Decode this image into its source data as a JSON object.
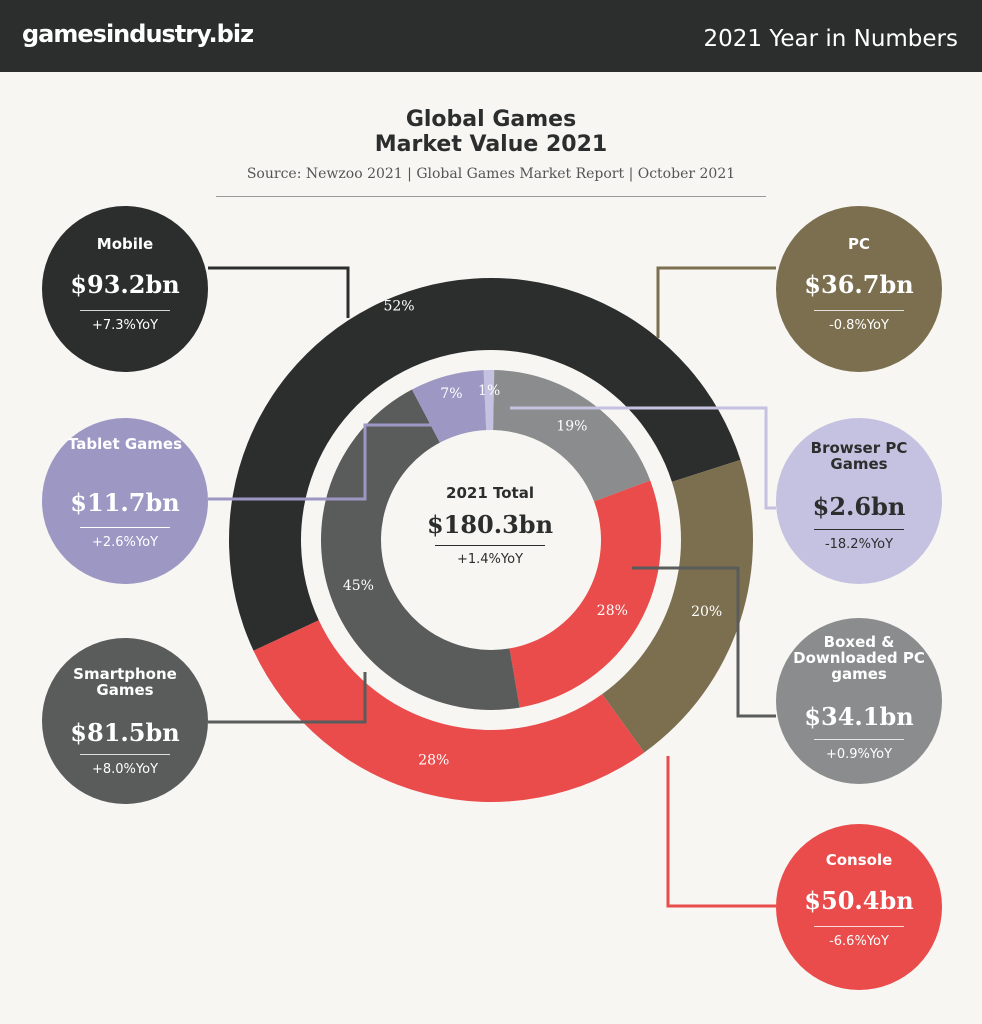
{
  "header": {
    "brand": "gamesindustry.biz",
    "section": "2021 Year in Numbers"
  },
  "title_line1": "Global Games",
  "title_line2": "Market Value 2021",
  "source": "Source: Newzoo 2021 | Global Games Market Report | October 2021",
  "total": {
    "label": "2021 Total",
    "value": "$180.3bn",
    "yoy": "+1.4%YoY"
  },
  "colors": {
    "mobile": "#2b2e2d",
    "pc": "#7b6f4f",
    "console": "#ea4b4b",
    "tablet": "#9d97c4",
    "browser": "#c4c2e0",
    "smartphone": "#5a5b5b",
    "boxed": "#8a8c8d"
  },
  "categories": [
    {
      "label": "Mobile",
      "value": "$93.2bn",
      "yoy": "+7.3%YoY"
    },
    {
      "label": "PC",
      "value": "$36.7bn",
      "yoy": "-0.8%YoY"
    },
    {
      "label": "Tablet Games",
      "value": "$11.7bn",
      "yoy": "+2.6%YoY"
    },
    {
      "label": "Browser PC Games",
      "value": "$2.6bn",
      "yoy": "-18.2%YoY"
    },
    {
      "label": "Smartphone Games",
      "value": "$81.5bn",
      "yoy": "+8.0%YoY"
    },
    {
      "label": "Boxed & Downloaded PC games",
      "value": "$34.1bn",
      "yoy": "+0.9%YoY"
    },
    {
      "label": "Console",
      "value": "$50.4bn",
      "yoy": "-6.6%YoY"
    }
  ],
  "chart_data": {
    "type": "pie",
    "title": "Global Games Market Value 2021",
    "outer_ring": [
      {
        "name": "Mobile",
        "value": 52,
        "label": "52%",
        "color": "#2b2e2d"
      },
      {
        "name": "PC",
        "value": 20,
        "label": "20%",
        "color": "#7b6f4f"
      },
      {
        "name": "Console",
        "value": 28,
        "label": "28%",
        "color": "#ea4b4b"
      }
    ],
    "inner_ring": [
      {
        "name": "Browser PC Games",
        "value": 1,
        "label": "1%",
        "color": "#c4c2e0"
      },
      {
        "name": "Boxed & Downloaded PC games",
        "value": 19,
        "label": "19%",
        "color": "#8a8c8d"
      },
      {
        "name": "Console",
        "value": 28,
        "label": "28%",
        "color": "#ea4b4b"
      },
      {
        "name": "Smartphone Games",
        "value": 45,
        "label": "45%",
        "color": "#5a5b5b"
      },
      {
        "name": "Tablet Games",
        "value": 7,
        "label": "7%",
        "color": "#9d97c4"
      }
    ]
  }
}
